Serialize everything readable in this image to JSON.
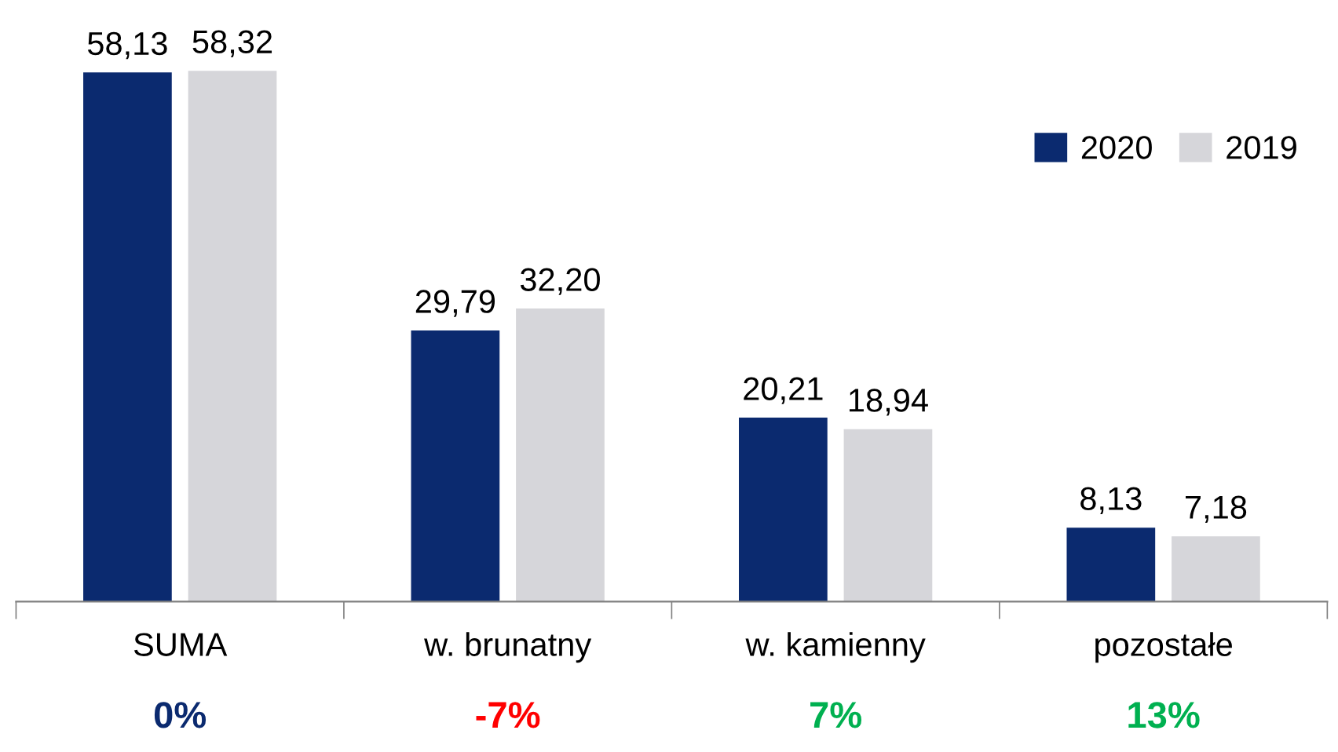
{
  "chart_data": {
    "type": "bar",
    "categories": [
      "SUMA",
      "w. brunatny",
      "w. kamienny",
      "pozostałe"
    ],
    "series": [
      {
        "name": "2020",
        "color": "#0b2a6f",
        "values": [
          58.13,
          29.79,
          20.21,
          8.13
        ],
        "value_labels": [
          "58,13",
          "29,79",
          "20,21",
          "8,13"
        ]
      },
      {
        "name": "2019",
        "color": "#d6d6da",
        "values": [
          58.32,
          32.2,
          18.94,
          7.18
        ],
        "value_labels": [
          "58,32",
          "32,20",
          "18,94",
          "7,18"
        ]
      }
    ],
    "legend": "top right",
    "grid": false,
    "annotations": [
      "0%",
      "-7%",
      "7%",
      "13%"
    ]
  }
}
